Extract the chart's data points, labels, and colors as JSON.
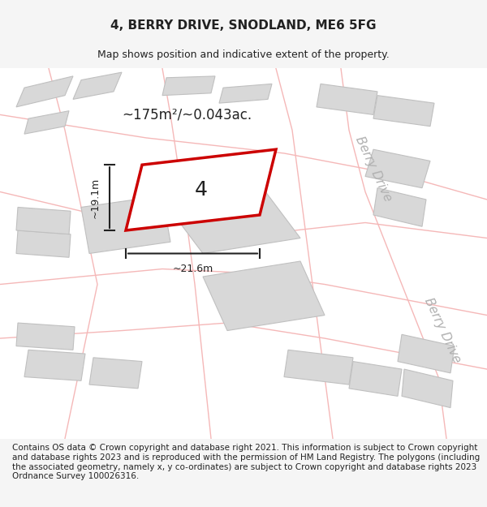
{
  "title": "4, BERRY DRIVE, SNODLAND, ME6 5FG",
  "subtitle": "Map shows position and indicative extent of the property.",
  "area_label": "~175m²/~0.043ac.",
  "dim_width": "~21.6m",
  "dim_height": "~19.1m",
  "property_number": "4",
  "road_label1": "Berry Drive",
  "road_label2": "Berry Drive",
  "footer": "Contains OS data © Crown copyright and database right 2021. This information is subject to Crown copyright and database rights 2023 and is reproduced with the permission of HM Land Registry. The polygons (including the associated geometry, namely x, y co-ordinates) are subject to Crown copyright and database rights 2023 Ordnance Survey 100026316.",
  "bg_color": "#f5f5f5",
  "map_bg": "#ffffff",
  "building_fill": "#d8d8d8",
  "building_edge": "#c0c0c0",
  "road_outline_color": "#f5b8b8",
  "highlight_fill": "#f0f0f0",
  "highlight_edge": "#cc0000",
  "dim_line_color": "#222222",
  "text_color": "#222222",
  "road_text_color": "#b0b0b0",
  "title_fontsize": 11,
  "subtitle_fontsize": 9,
  "footer_fontsize": 7.5
}
